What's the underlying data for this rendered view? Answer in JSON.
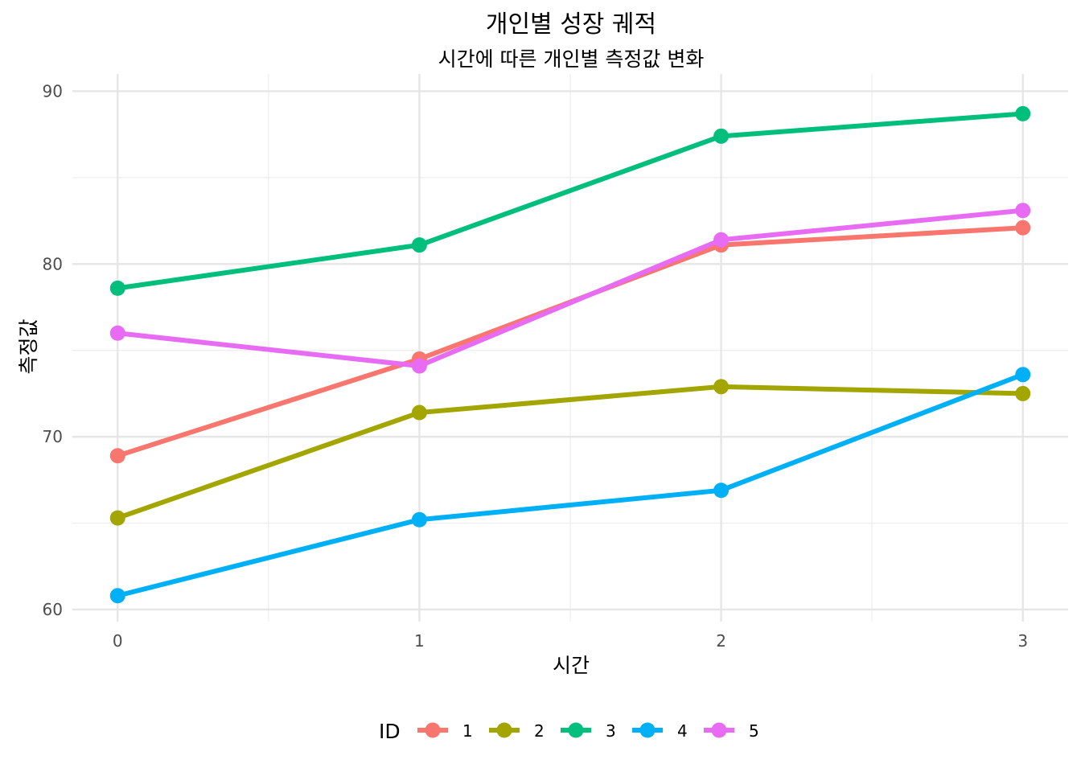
{
  "chart_data": {
    "type": "line",
    "title": "개인별 성장 궤적",
    "subtitle": "시간에 따른 개인별 측정값 변화",
    "xlabel": "시간",
    "ylabel": "측정값",
    "x": [
      0,
      1,
      2,
      3
    ],
    "x_tick_labels": [
      "0",
      "1",
      "2",
      "3"
    ],
    "xlim": [
      -0.15,
      3.15
    ],
    "y_ticks": [
      60,
      70,
      80,
      90
    ],
    "y_tick_labels": [
      "60",
      "70",
      "80",
      "90"
    ],
    "ylim": [
      59.3,
      91.0
    ],
    "grid": true,
    "legend": {
      "title": "ID",
      "position": "bottom"
    },
    "series": [
      {
        "name": "1",
        "color": "#F8766D",
        "values": [
          68.9,
          74.5,
          81.1,
          82.1
        ]
      },
      {
        "name": "2",
        "color": "#A3A500",
        "values": [
          65.3,
          71.4,
          72.9,
          72.5
        ]
      },
      {
        "name": "3",
        "color": "#00BF7D",
        "values": [
          78.6,
          81.1,
          87.4,
          88.7
        ]
      },
      {
        "name": "4",
        "color": "#00B0F6",
        "values": [
          60.8,
          65.2,
          66.9,
          73.6
        ]
      },
      {
        "name": "5",
        "color": "#E76BF3",
        "values": [
          76.0,
          74.1,
          81.4,
          83.1
        ]
      }
    ]
  }
}
